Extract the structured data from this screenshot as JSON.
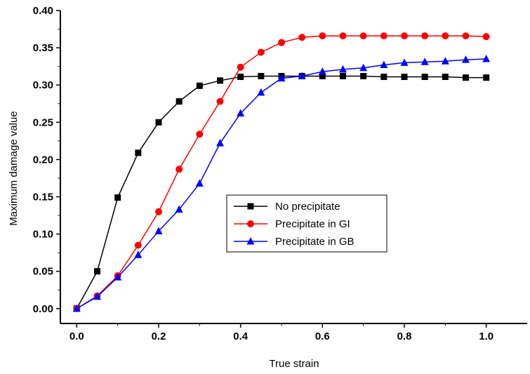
{
  "chart_data": {
    "type": "line",
    "xlabel": "True strain",
    "ylabel": "Maximum damage value",
    "xlim": [
      -0.04,
      1.1
    ],
    "ylim": [
      -0.02,
      0.4
    ],
    "grid": false,
    "legend_position": "center-right",
    "x_ticks": [
      {
        "value": 0.0,
        "label": "0.0"
      },
      {
        "value": 0.2,
        "label": "0.2"
      },
      {
        "value": 0.4,
        "label": "0.4"
      },
      {
        "value": 0.6,
        "label": "0.6"
      },
      {
        "value": 0.8,
        "label": "0.8"
      },
      {
        "value": 1.0,
        "label": "1.0"
      }
    ],
    "y_ticks": [
      {
        "value": 0.0,
        "label": "0.00"
      },
      {
        "value": 0.05,
        "label": "0.05"
      },
      {
        "value": 0.1,
        "label": "0.10"
      },
      {
        "value": 0.15,
        "label": "0.15"
      },
      {
        "value": 0.2,
        "label": "0.20"
      },
      {
        "value": 0.25,
        "label": "0.25"
      },
      {
        "value": 0.3,
        "label": "0.30"
      },
      {
        "value": 0.35,
        "label": "0.35"
      },
      {
        "value": 0.4,
        "label": "0.40"
      }
    ],
    "x": [
      0.0,
      0.05,
      0.1,
      0.15,
      0.2,
      0.25,
      0.3,
      0.35,
      0.4,
      0.45,
      0.5,
      0.55,
      0.6,
      0.65,
      0.7,
      0.75,
      0.8,
      0.85,
      0.9,
      0.95,
      1.0
    ],
    "series": [
      {
        "name": "No precipitate",
        "color": "#000000",
        "marker": "square",
        "values": [
          0.0,
          0.05,
          0.149,
          0.209,
          0.25,
          0.278,
          0.299,
          0.306,
          0.311,
          0.312,
          0.312,
          0.312,
          0.312,
          0.312,
          0.312,
          0.311,
          0.311,
          0.311,
          0.311,
          0.31,
          0.31
        ]
      },
      {
        "name": "Precipitate in GI",
        "color": "#ff0000",
        "marker": "circle",
        "values": [
          0.0,
          0.017,
          0.044,
          0.085,
          0.13,
          0.187,
          0.234,
          0.278,
          0.324,
          0.344,
          0.357,
          0.364,
          0.366,
          0.366,
          0.366,
          0.366,
          0.366,
          0.366,
          0.366,
          0.366,
          0.365
        ]
      },
      {
        "name": "Precipitate in GB",
        "color": "#0000ff",
        "marker": "triangle",
        "values": [
          0.0,
          0.016,
          0.042,
          0.072,
          0.104,
          0.133,
          0.168,
          0.222,
          0.262,
          0.29,
          0.309,
          0.312,
          0.318,
          0.321,
          0.323,
          0.327,
          0.33,
          0.331,
          0.332,
          0.334,
          0.335
        ]
      }
    ]
  }
}
